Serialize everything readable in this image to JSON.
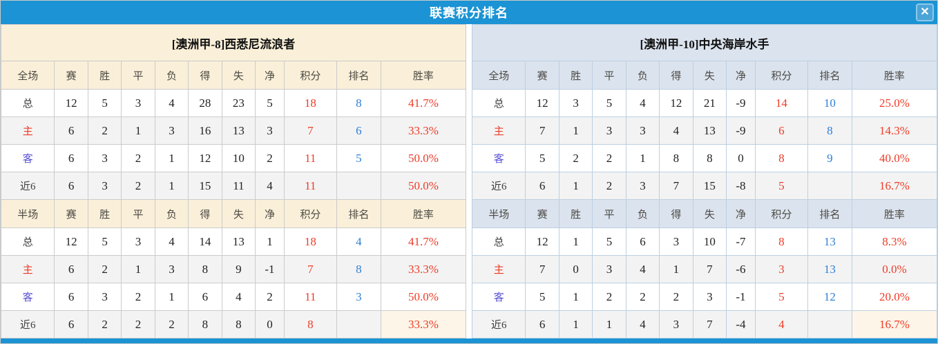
{
  "titlebar": {
    "title": "联赛积分排名",
    "close_icon": "✕"
  },
  "columns": [
    "赛",
    "胜",
    "平",
    "负",
    "得",
    "失",
    "净",
    "积分",
    "排名",
    "胜率"
  ],
  "section_labels": {
    "full": "全场",
    "half": "半场"
  },
  "colors": {
    "accent": "#1b93d4",
    "cream": "#faefd8",
    "bluegrey": "#dbe3ee",
    "red": "#ee3b26",
    "blue": "#2e7fd6",
    "purple": "#5b52d6",
    "alt_row": "#f3f3f3",
    "cream_cell": "#fcf5e8"
  },
  "teams": [
    {
      "title": "[澳洲甲-8]西悉尼流浪者",
      "theme": "cream",
      "full": {
        "rows": [
          {
            "label": "总",
            "cells": [
              "12",
              "5",
              "3",
              "4",
              "28",
              "23",
              "5",
              "18",
              "8",
              "41.7%"
            ]
          },
          {
            "label": "主",
            "cells": [
              "6",
              "2",
              "1",
              "3",
              "16",
              "13",
              "3",
              "7",
              "6",
              "33.3%"
            ]
          },
          {
            "label": "客",
            "cells": [
              "6",
              "3",
              "2",
              "1",
              "12",
              "10",
              "2",
              "11",
              "5",
              "50.0%"
            ]
          },
          {
            "label": "近6",
            "cells": [
              "6",
              "3",
              "2",
              "1",
              "15",
              "11",
              "4",
              "11",
              "",
              "50.0%"
            ]
          }
        ]
      },
      "half": {
        "rows": [
          {
            "label": "总",
            "cells": [
              "12",
              "5",
              "3",
              "4",
              "14",
              "13",
              "1",
              "18",
              "4",
              "41.7%"
            ]
          },
          {
            "label": "主",
            "cells": [
              "6",
              "2",
              "1",
              "3",
              "8",
              "9",
              "-1",
              "7",
              "8",
              "33.3%"
            ]
          },
          {
            "label": "客",
            "cells": [
              "6",
              "3",
              "2",
              "1",
              "6",
              "4",
              "2",
              "11",
              "3",
              "50.0%"
            ]
          },
          {
            "label": "近6",
            "cells": [
              "6",
              "2",
              "2",
              "2",
              "8",
              "8",
              "0",
              "8",
              "",
              "33.3%"
            ]
          }
        ]
      }
    },
    {
      "title": "[澳洲甲-10]中央海岸水手",
      "theme": "blue",
      "full": {
        "rows": [
          {
            "label": "总",
            "cells": [
              "12",
              "3",
              "5",
              "4",
              "12",
              "21",
              "-9",
              "14",
              "10",
              "25.0%"
            ]
          },
          {
            "label": "主",
            "cells": [
              "7",
              "1",
              "3",
              "3",
              "4",
              "13",
              "-9",
              "6",
              "8",
              "14.3%"
            ]
          },
          {
            "label": "客",
            "cells": [
              "5",
              "2",
              "2",
              "1",
              "8",
              "8",
              "0",
              "8",
              "9",
              "40.0%"
            ]
          },
          {
            "label": "近6",
            "cells": [
              "6",
              "1",
              "2",
              "3",
              "7",
              "15",
              "-8",
              "5",
              "",
              "16.7%"
            ]
          }
        ]
      },
      "half": {
        "rows": [
          {
            "label": "总",
            "cells": [
              "12",
              "1",
              "5",
              "6",
              "3",
              "10",
              "-7",
              "8",
              "13",
              "8.3%"
            ]
          },
          {
            "label": "主",
            "cells": [
              "7",
              "0",
              "3",
              "4",
              "1",
              "7",
              "-6",
              "3",
              "13",
              "0.0%"
            ]
          },
          {
            "label": "客",
            "cells": [
              "5",
              "1",
              "2",
              "2",
              "2",
              "3",
              "-1",
              "5",
              "12",
              "20.0%"
            ]
          },
          {
            "label": "近6",
            "cells": [
              "6",
              "1",
              "1",
              "4",
              "3",
              "7",
              "-4",
              "4",
              "",
              "16.7%"
            ]
          }
        ]
      }
    }
  ]
}
